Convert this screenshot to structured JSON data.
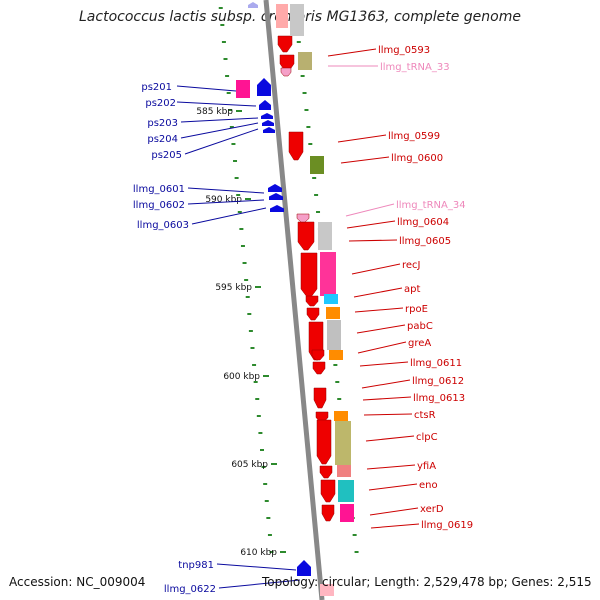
{
  "title": "Lactococcus lactis subsp. cremoris MG1363, complete genome",
  "footer": {
    "accession": "Accession: NC_009004",
    "topology": "Topology: circular; Length: 2,529,478 bp; Genes: 2,515"
  },
  "colors": {
    "backbone": "#888888",
    "tick": "#2d8a2d",
    "left_strand": "#0a0adf",
    "right_strand": "#ee0000",
    "rna": "#f5a0c8",
    "label_left": "#0a0a9e",
    "label_right": "#cc0000",
    "label_rna": "#ee88bb"
  },
  "kbp_ticks": [
    "585 kbp",
    "590 kbp",
    "595 kbp",
    "600 kbp",
    "605 kbp",
    "610 kbp"
  ],
  "left_genes": [
    "ps201",
    "ps202",
    "ps203",
    "ps204",
    "ps205",
    "llmg_0601",
    "llmg_0602",
    "llmg_0603",
    "tnp981",
    "llmg_0622"
  ],
  "right_genes": [
    "llmg_0593",
    "llmg_tRNA_33",
    "llmg_0599",
    "llmg_0600",
    "llmg_tRNA_34",
    "llmg_0604",
    "llmg_0605",
    "recJ",
    "apt",
    "rpoE",
    "pabC",
    "greA",
    "llmg_0611",
    "llmg_0612",
    "llmg_0613",
    "ctsR",
    "clpC",
    "yfiA",
    "eno",
    "xerD",
    "llmg_0619"
  ]
}
